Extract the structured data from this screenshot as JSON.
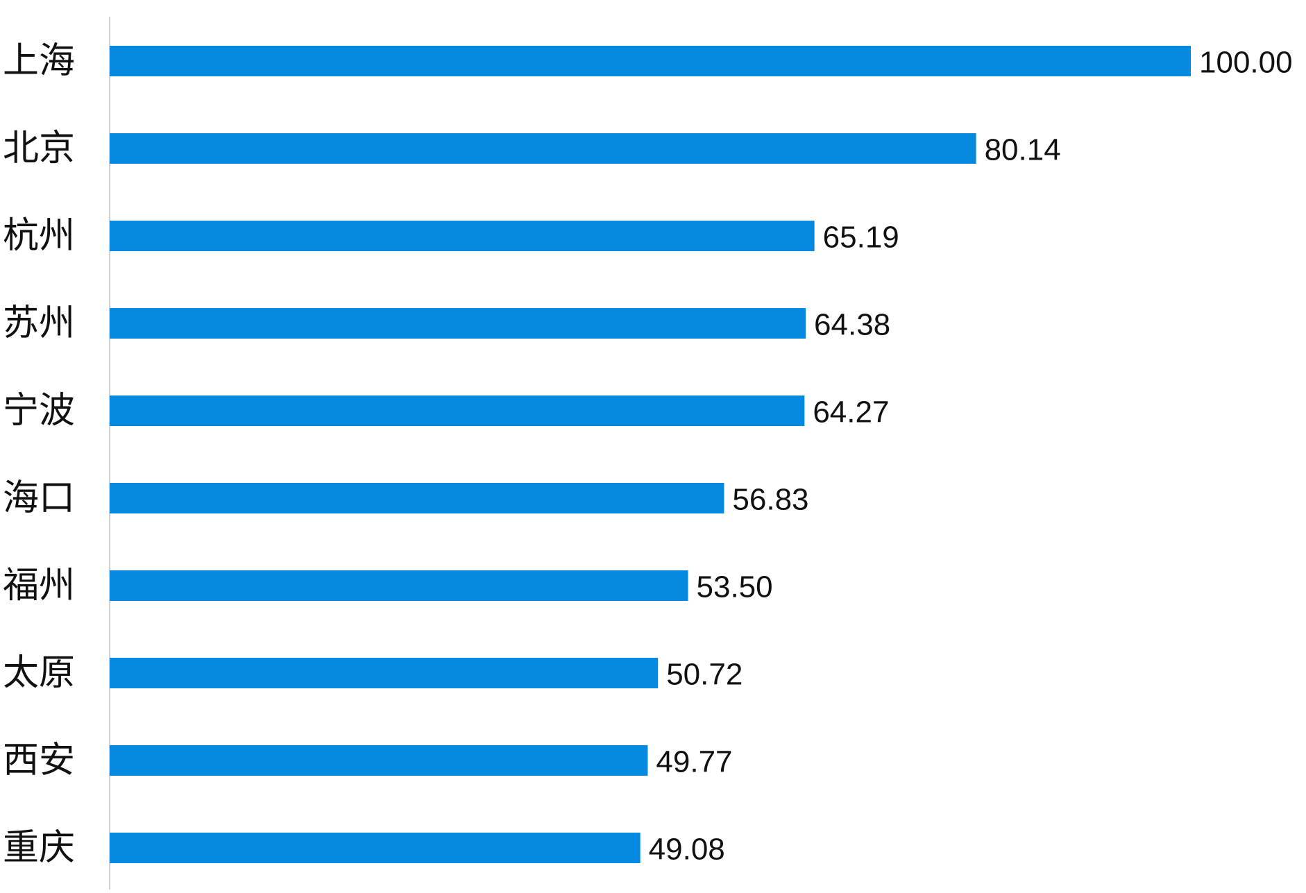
{
  "chart_data": {
    "type": "bar",
    "orientation": "horizontal",
    "categories": [
      "上海",
      "北京",
      "杭州",
      "苏州",
      "宁波",
      "海口",
      "福州",
      "太原",
      "西安",
      "重庆"
    ],
    "values": [
      100.0,
      80.14,
      65.19,
      64.38,
      64.27,
      56.83,
      53.5,
      50.72,
      49.77,
      49.08
    ],
    "value_labels": [
      "100.00",
      "80.14",
      "65.19",
      "64.38",
      "64.27",
      "56.83",
      "53.50",
      "50.72",
      "49.77",
      "49.08"
    ],
    "title": "",
    "xlabel": "",
    "ylabel": "",
    "xlim": [
      0,
      100
    ],
    "grid": false,
    "legend": "none",
    "bar_color": "#058ae0",
    "axis_color": "#d0d0d0",
    "text_color": "#111111"
  }
}
